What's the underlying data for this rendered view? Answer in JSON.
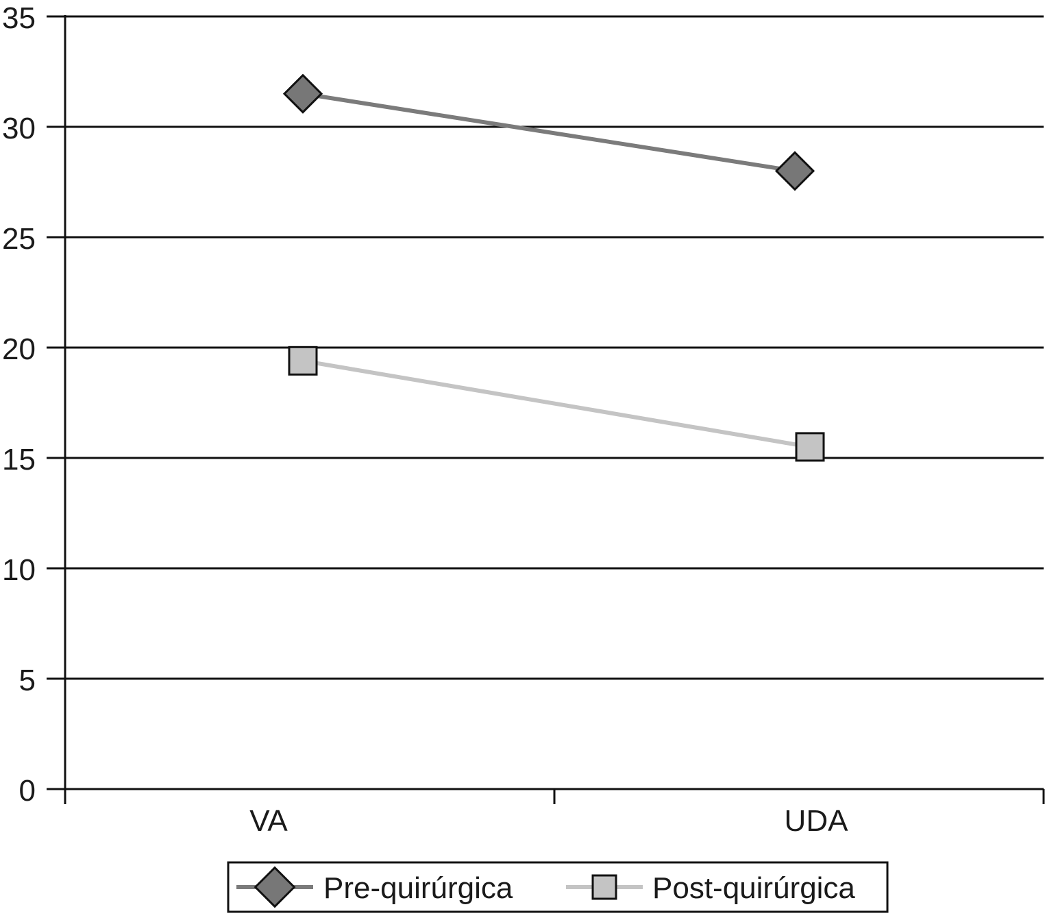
{
  "chart_data": {
    "type": "line",
    "categories": [
      "VA",
      "UDA"
    ],
    "series": [
      {
        "name": "Pre-quirúrgica",
        "values": [
          31.5,
          28.0
        ],
        "color": "#7b7b7b",
        "marker": "diamond",
        "marker_fill": "#777777"
      },
      {
        "name": "Post-quirúrgica",
        "values": [
          19.4,
          15.5
        ],
        "color": "#c4c4c4",
        "marker": "square",
        "marker_fill": "#c4c4c4"
      }
    ],
    "title": "",
    "xlabel": "",
    "ylabel": "",
    "ylim": [
      0,
      35
    ],
    "yticks": [
      0,
      5,
      10,
      15,
      20,
      25,
      30,
      35
    ],
    "ytick_labels": [
      "0",
      "5",
      "10",
      "15",
      "20",
      "25",
      "30",
      "35"
    ],
    "grid": true,
    "legend_position": "bottom"
  }
}
